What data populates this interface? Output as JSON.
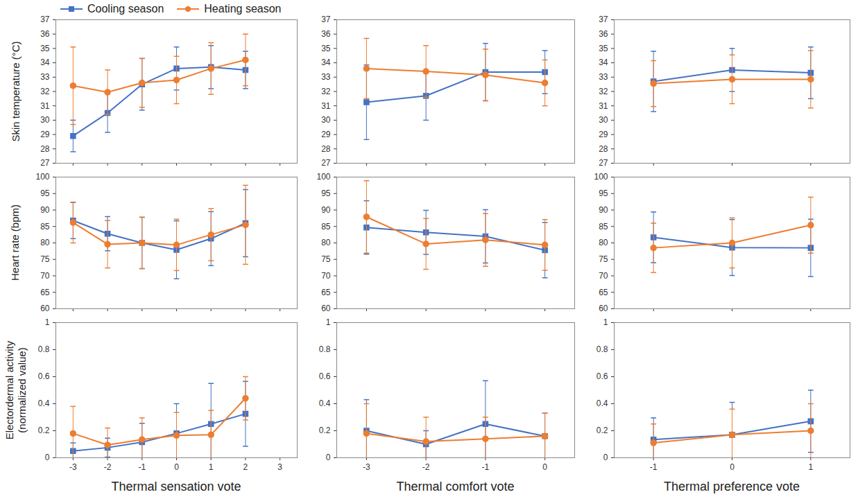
{
  "chart_data": [
    {
      "type": "line",
      "ylabel": "Skin temperature (°C)",
      "legend": "top-left",
      "tick_labels": "y",
      "x": [
        -3,
        -2,
        -1,
        0,
        1,
        2
      ],
      "xlim": [
        -3.5,
        3.5
      ],
      "xticks": [
        -3,
        -2,
        -1,
        0,
        1,
        2,
        3
      ],
      "ylim": [
        27,
        37
      ],
      "yticks": [
        27,
        28,
        29,
        30,
        31,
        32,
        33,
        34,
        35,
        36,
        37
      ],
      "series": [
        {
          "name": "Cooling season",
          "color": "#4472c4",
          "marker": "square",
          "values": [
            28.9,
            30.5,
            32.5,
            33.6,
            33.7,
            33.5
          ],
          "error": [
            1.1,
            1.35,
            1.8,
            1.5,
            1.5,
            1.3
          ]
        },
        {
          "name": "Heating season",
          "color": "#ed7d31",
          "marker": "circle",
          "values": [
            32.4,
            31.95,
            32.6,
            32.8,
            33.6,
            34.2
          ],
          "error": [
            2.7,
            1.55,
            1.7,
            1.65,
            1.8,
            1.8
          ]
        }
      ]
    },
    {
      "type": "line",
      "tick_labels": "y",
      "x": [
        -3,
        -2,
        -1,
        0
      ],
      "xlim": [
        -3.5,
        0.5
      ],
      "xticks": [
        -3,
        -2,
        -1,
        0
      ],
      "ylim": [
        27,
        37
      ],
      "yticks": [
        27,
        28,
        29,
        30,
        31,
        32,
        33,
        34,
        35,
        36,
        37
      ],
      "series": [
        {
          "name": "Cooling season",
          "color": "#4472c4",
          "marker": "square",
          "values": [
            31.25,
            31.7,
            33.35,
            33.35
          ],
          "error": [
            2.6,
            1.7,
            2.0,
            1.5
          ]
        },
        {
          "name": "Heating season",
          "color": "#ed7d31",
          "marker": "circle",
          "values": [
            33.6,
            33.4,
            33.15,
            32.6
          ],
          "error": [
            2.1,
            1.8,
            1.8,
            1.6
          ]
        }
      ]
    },
    {
      "type": "line",
      "tick_labels": "y",
      "x": [
        -1,
        0,
        1
      ],
      "xlim": [
        -1.5,
        1.5
      ],
      "xticks": [
        -1,
        0,
        1
      ],
      "ylim": [
        27,
        37
      ],
      "yticks": [
        27,
        28,
        29,
        30,
        31,
        32,
        33,
        34,
        35,
        36,
        37
      ],
      "series": [
        {
          "name": "Cooling season",
          "color": "#4472c4",
          "marker": "square",
          "values": [
            32.7,
            33.5,
            33.3
          ],
          "error": [
            2.1,
            1.5,
            1.8
          ]
        },
        {
          "name": "Heating season",
          "color": "#ed7d31",
          "marker": "circle",
          "values": [
            32.55,
            32.85,
            32.85
          ],
          "error": [
            1.6,
            1.7,
            2.0
          ]
        }
      ]
    },
    {
      "type": "line",
      "ylabel": "Heart rate (bpm)",
      "tick_labels": "y",
      "x": [
        -3,
        -2,
        -1,
        0,
        1,
        2
      ],
      "xlim": [
        -3.5,
        3.5
      ],
      "xticks": [
        -3,
        -2,
        -1,
        0,
        1,
        2,
        3
      ],
      "ylim": [
        60,
        100
      ],
      "yticks": [
        60,
        65,
        70,
        75,
        80,
        85,
        90,
        95,
        100
      ],
      "series": [
        {
          "name": "Cooling season",
          "color": "#4472c4",
          "marker": "square",
          "values": [
            86.8,
            82.8,
            80.0,
            77.9,
            81.3,
            86.0
          ],
          "error": [
            5.5,
            5.2,
            7.8,
            8.8,
            8.2,
            10.2
          ]
        },
        {
          "name": "Heating season",
          "color": "#ed7d31",
          "marker": "circle",
          "values": [
            86.2,
            79.6,
            80.0,
            79.4,
            82.5,
            85.5
          ],
          "error": [
            6.2,
            7.2,
            7.8,
            7.8,
            7.9,
            12.0
          ]
        }
      ]
    },
    {
      "type": "line",
      "tick_labels": "y",
      "x": [
        -3,
        -2,
        -1,
        0
      ],
      "xlim": [
        -3.5,
        0.5
      ],
      "xticks": [
        -3,
        -2,
        -1,
        0
      ],
      "ylim": [
        60,
        100
      ],
      "yticks": [
        60,
        65,
        70,
        75,
        80,
        85,
        90,
        95,
        100
      ],
      "series": [
        {
          "name": "Cooling season",
          "color": "#4472c4",
          "marker": "square",
          "values": [
            84.7,
            83.2,
            82.0,
            77.8
          ],
          "error": [
            8.1,
            6.7,
            8.1,
            8.4
          ]
        },
        {
          "name": "Heating season",
          "color": "#ed7d31",
          "marker": "circle",
          "values": [
            87.9,
            79.7,
            80.9,
            79.4
          ],
          "error": [
            11.0,
            7.7,
            8.0,
            7.7
          ]
        }
      ]
    },
    {
      "type": "line",
      "tick_labels": "y",
      "x": [
        -1,
        0,
        1
      ],
      "xlim": [
        -1.5,
        1.5
      ],
      "xticks": [
        -1,
        0,
        1
      ],
      "ylim": [
        60,
        100
      ],
      "yticks": [
        60,
        65,
        70,
        75,
        80,
        85,
        90,
        95,
        100
      ],
      "series": [
        {
          "name": "Cooling season",
          "color": "#4472c4",
          "marker": "square",
          "values": [
            81.7,
            78.6,
            78.5
          ],
          "error": [
            7.7,
            8.5,
            8.7
          ]
        },
        {
          "name": "Heating season",
          "color": "#ed7d31",
          "marker": "circle",
          "values": [
            78.5,
            80.0,
            85.4
          ],
          "error": [
            7.5,
            7.6,
            8.5
          ]
        }
      ]
    },
    {
      "type": "line",
      "ylabel": "Electordermal activity (normalized value)",
      "xlabel": "Thermal sensation vote",
      "x": [
        -3,
        -2,
        -1,
        0,
        1,
        2
      ],
      "xlim": [
        -3.5,
        3.5
      ],
      "xticks": [
        -3,
        -2,
        -1,
        0,
        1,
        2,
        3
      ],
      "ylim": [
        0,
        1
      ],
      "yticks": [
        0,
        0.2,
        0.4,
        0.6,
        0.8,
        1
      ],
      "series": [
        {
          "name": "Cooling season",
          "color": "#4472c4",
          "marker": "square",
          "values": [
            0.05,
            0.075,
            0.115,
            0.18,
            0.25,
            0.325
          ],
          "error": [
            0.06,
            0.07,
            0.14,
            0.22,
            0.3,
            0.24
          ]
        },
        {
          "name": "Heating season",
          "color": "#ed7d31",
          "marker": "circle",
          "values": [
            0.18,
            0.095,
            0.135,
            0.165,
            0.17,
            0.44
          ],
          "error": [
            0.2,
            0.125,
            0.16,
            0.17,
            0.18,
            0.16
          ]
        }
      ]
    },
    {
      "type": "line",
      "xlabel": "Thermal comfort vote",
      "x": [
        -3,
        -2,
        -1,
        0
      ],
      "xlim": [
        -3.5,
        0.5
      ],
      "xticks": [
        -3,
        -2,
        -1,
        0
      ],
      "ylim": [
        0,
        1
      ],
      "yticks": [
        0,
        0.2,
        0.4,
        0.6,
        0.8,
        1
      ],
      "series": [
        {
          "name": "Cooling season",
          "color": "#4472c4",
          "marker": "square",
          "values": [
            0.2,
            0.1,
            0.25,
            0.16
          ],
          "error": [
            0.23,
            0.1,
            0.32,
            0.17
          ]
        },
        {
          "name": "Heating season",
          "color": "#ed7d31",
          "marker": "circle",
          "values": [
            0.18,
            0.12,
            0.14,
            0.16
          ],
          "error": [
            0.22,
            0.18,
            0.16,
            0.17
          ]
        }
      ]
    },
    {
      "type": "line",
      "xlabel": "Thermal preference vote",
      "x": [
        -1,
        0,
        1
      ],
      "xlim": [
        -1.5,
        1.5
      ],
      "xticks": [
        -1,
        0,
        1
      ],
      "ylim": [
        0,
        1
      ],
      "yticks": [
        0,
        0.2,
        0.4,
        0.6,
        0.8,
        1
      ],
      "series": [
        {
          "name": "Cooling season",
          "color": "#4472c4",
          "marker": "square",
          "values": [
            0.135,
            0.17,
            0.27
          ],
          "error": [
            0.16,
            0.24,
            0.23
          ]
        },
        {
          "name": "Heating season",
          "color": "#ed7d31",
          "marker": "circle",
          "values": [
            0.11,
            0.17,
            0.2
          ],
          "error": [
            0.14,
            0.19,
            0.2
          ]
        }
      ]
    }
  ]
}
